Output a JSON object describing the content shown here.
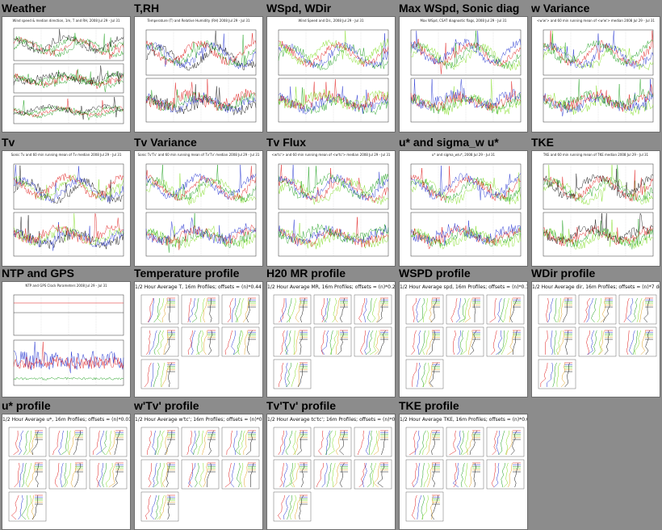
{
  "cells": [
    {
      "title": "Weather",
      "kind": "ts3",
      "plot_title": "Wind speed & median direction, 1m, T and RH, 2008 Jul 29 - Jul 31",
      "colors": [
        "#1a9e1a",
        "#e01818",
        "#1a9e1a",
        "#101010"
      ]
    },
    {
      "title": "T,RH",
      "kind": "ts2",
      "plot_title": "Temperature (T) and Relative Humidity (RH) 2008 Jul 29 - Jul 31",
      "colors": [
        "#101010",
        "#2030d0",
        "#1a9e1a",
        "#e01818"
      ]
    },
    {
      "title": "WSpd, WDir",
      "kind": "ts2",
      "plot_title": "Wind Speed and Dir., 2008 Jul 29 - Jul 31",
      "colors": [
        "#1a9e1a",
        "#2030d0",
        "#e01818",
        "#7fdc20"
      ]
    },
    {
      "title": "Max WSpd, Sonic diag",
      "kind": "ts2",
      "plot_title": "Max WSpd, CSAT diagnostic flags, 2008 Jul 29 - Jul 31",
      "colors": [
        "#7fdc20",
        "#1a9e1a",
        "#e01818",
        "#2030d0"
      ]
    },
    {
      "title": "w Variance",
      "kind": "ts2",
      "plot_title": "<w'w'> and 60 min running mean of <w'w'> median 2008 Jul 29 - Jul 31",
      "colors": [
        "#7fdc20",
        "#2030d0",
        "#e01818",
        "#1a9e1a"
      ]
    },
    {
      "title": "Tv",
      "kind": "ts2",
      "plot_title": "Sonic Tv and 60 min running mean of Tv median 2008 Jul 29 - Jul 31",
      "colors": [
        "#101010",
        "#2030d0",
        "#7fdc20",
        "#e01818"
      ]
    },
    {
      "title": "Tv Variance",
      "kind": "ts2",
      "plot_title": "Sonic Tv'Tv' and 60 min running mean of Tv'Tv' median 2008 Jul 29 - Jul 31",
      "colors": [
        "#7fdc20",
        "#1a9e1a",
        "#e01818",
        "#2030d0"
      ]
    },
    {
      "title": "Tv Flux",
      "kind": "ts2",
      "plot_title": "<w'tc'> and 60 min running mean of <w'tc'> median 2008 Jul 29 - Jul 31",
      "colors": [
        "#7fdc20",
        "#e01818",
        "#2030d0",
        "#1a9e1a"
      ]
    },
    {
      "title": "u* and sigma_w u*",
      "kind": "ts2",
      "plot_title": "u* and sigma_w/u*, 2008 Jul 29 - Jul 31",
      "colors": [
        "#7fdc20",
        "#1a9e1a",
        "#e01818",
        "#2030d0"
      ]
    },
    {
      "title": "TKE",
      "kind": "ts2",
      "plot_title": "TKE and 60 min running mean of TKE median 2008 Jul 29 - Jul 31",
      "colors": [
        "#7fdc20",
        "#1a9e1a",
        "#e01818",
        "#101010"
      ]
    },
    {
      "title": "NTP and GPS",
      "kind": "ntp",
      "plot_title": "NTP and GPS Clock Parameters 2008 Jul 29 - Jul 31",
      "colors": [
        "#2030d0",
        "#e01818",
        "#1a9e1a",
        "#101010"
      ]
    },
    {
      "title": "Temperature profile",
      "kind": "prof",
      "plot_title": "1/2 Hour Average T, 16m Profiles; offsets = (n)*0.44 degC",
      "colors": [
        "#e01818",
        "#2030d0",
        "#1a9e1a",
        "#7fdc20",
        "#e0a020",
        "#101010"
      ]
    },
    {
      "title": "H20 MR profile",
      "kind": "prof",
      "plot_title": "1/2 Hour Average MR, 16m Profiles; offsets = (n)*0.22 g/kg",
      "colors": [
        "#e01818",
        "#2030d0",
        "#1a9e1a",
        "#7fdc20",
        "#e0a020",
        "#101010"
      ]
    },
    {
      "title": "WSPD profile",
      "kind": "prof",
      "plot_title": "1/2 Hour Average spd, 16m Profiles; offsets = (n)*0.1 m/s",
      "colors": [
        "#e01818",
        "#2030d0",
        "#1a9e1a",
        "#7fdc20",
        "#e0a020",
        "#101010"
      ]
    },
    {
      "title": "WDir profile",
      "kind": "prof",
      "plot_title": "1/2 Hour Average dir, 16m Profiles; offsets = (n)*7 deg",
      "colors": [
        "#e01818",
        "#2030d0",
        "#1a9e1a",
        "#7fdc20",
        "#e0a020",
        "#101010"
      ]
    },
    {
      "title": "u* profile",
      "kind": "prof",
      "plot_title": "1/2 Hour Average u*, 16m Profiles; offsets = (n)*0.018 m/s",
      "colors": [
        "#e01818",
        "#2030d0",
        "#1a9e1a",
        "#7fdc20",
        "#e0a020",
        "#101010"
      ]
    },
    {
      "title": "w'Tv' profile",
      "kind": "prof",
      "plot_title": "1/2 Hour Average w'tc'; 16m Profiles; offsets = (n)*0.007 m/s degC",
      "colors": [
        "#e01818",
        "#2030d0",
        "#1a9e1a",
        "#7fdc20",
        "#e0a020",
        "#101010"
      ]
    },
    {
      "title": "Tv'Tv' profile",
      "kind": "prof",
      "plot_title": "1/2 Hour Average tc'tc'; 16m Profiles; offsets = (n)*0.016 (degC)^2",
      "colors": [
        "#e01818",
        "#2030d0",
        "#1a9e1a",
        "#7fdc20",
        "#e0a020",
        "#101010"
      ]
    },
    {
      "title": "TKE profile",
      "kind": "prof",
      "plot_title": "1/2 Hour Average TKE, 16m Profiles; offsets = (n)*0.06 (m/s)^2",
      "colors": [
        "#e01818",
        "#2030d0",
        "#1a9e1a",
        "#7fdc20",
        "#e0a020",
        "#101010"
      ]
    }
  ]
}
